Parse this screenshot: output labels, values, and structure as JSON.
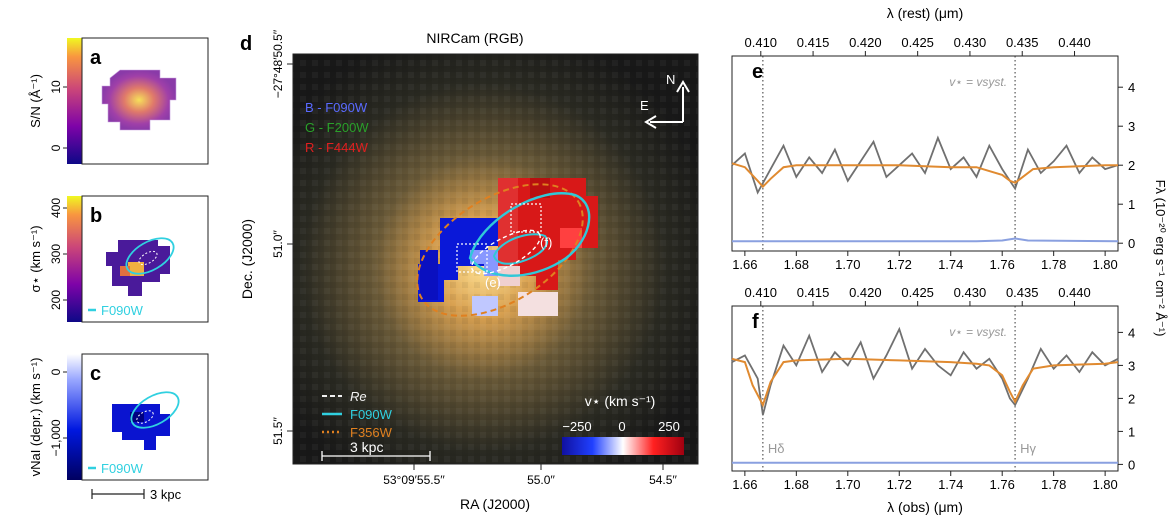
{
  "panels": {
    "a": {
      "letter": "a",
      "ylabel": "S/N (Å⁻¹)",
      "colorbar_ticks": [
        "10",
        "0"
      ]
    },
    "b": {
      "letter": "b",
      "ylabel": "σ⋆ (km s⁻¹)",
      "colorbar_ticks": [
        "400",
        "300",
        "200"
      ],
      "legend": "F090W"
    },
    "c": {
      "letter": "c",
      "ylabel": "vNaI (depr.) (km s⁻¹)",
      "colorbar_ticks": [
        "0",
        "−1,000"
      ],
      "legend": "F090W",
      "scalebar": "3 kpc"
    },
    "d": {
      "letter": "d",
      "title": "NIRCam (RGB)",
      "bands": [
        "B - F090W",
        "G - F200W",
        "R - F444W"
      ],
      "compass": {
        "north": "N",
        "east": "E"
      },
      "yticks": [
        "−27°48′50.5′′",
        "51.0′′",
        "51.5′′"
      ],
      "xticks": [
        "53°09′55.5′′",
        "55.0′′",
        "54.5′′"
      ],
      "xlabel": "RA (J2000)",
      "ylabel": "Dec. (J2000)",
      "legend": [
        {
          "label": "Re",
          "color": "#f0f0f0",
          "style": "dashed"
        },
        {
          "label": "F090W",
          "color": "#30d0e0",
          "style": "solid"
        },
        {
          "label": "F356W",
          "color": "#e08020",
          "style": "dotted"
        }
      ],
      "scalebar": "3 kpc",
      "region_labels": [
        "(f)",
        "(e)"
      ],
      "colorbar": {
        "title": "v⋆ (km s⁻¹)",
        "ticks": [
          "−250",
          "0",
          "250"
        ]
      }
    },
    "spectra": {
      "top_axis_label": "λ (rest) (μm)",
      "bottom_axis_label": "λ (obs) (μm)",
      "right_axis_label": "Fλ (10⁻²⁰ erg s⁻¹ cm⁻² Å⁻¹)",
      "systemic_label": "v⋆ = vsyst.",
      "line_labels": [
        "Hδ",
        "Hγ"
      ]
    }
  },
  "chart_data": [
    {
      "type": "line",
      "panel": "e",
      "x_obs_ticks": [
        1.66,
        1.68,
        1.7,
        1.72,
        1.74,
        1.76,
        1.78,
        1.8
      ],
      "x_rest_ticks": [
        0.41,
        0.415,
        0.42,
        0.425,
        0.43,
        0.435,
        0.44
      ],
      "xlim": [
        1.655,
        1.805
      ],
      "ylim": [
        -0.2,
        4.8
      ],
      "yticks": [
        0,
        1,
        2,
        3,
        4
      ],
      "vlines": [
        1.667,
        1.765
      ],
      "series": [
        {
          "color": "#707070",
          "x": [
            1.655,
            1.66,
            1.665,
            1.67,
            1.675,
            1.68,
            1.685,
            1.69,
            1.695,
            1.7,
            1.705,
            1.71,
            1.715,
            1.72,
            1.725,
            1.73,
            1.735,
            1.74,
            1.745,
            1.75,
            1.755,
            1.76,
            1.765,
            1.77,
            1.775,
            1.78,
            1.785,
            1.79,
            1.795,
            1.8,
            1.805
          ],
          "values": [
            2.0,
            2.3,
            1.3,
            1.9,
            2.5,
            1.7,
            2.2,
            1.8,
            2.4,
            1.6,
            2.1,
            2.6,
            1.7,
            2.0,
            2.3,
            1.8,
            2.7,
            1.9,
            2.2,
            1.7,
            2.5,
            1.9,
            1.4,
            2.4,
            1.8,
            2.1,
            2.5,
            1.8,
            2.2,
            1.9,
            2.0
          ]
        },
        {
          "color": "#e08a30",
          "x": [
            1.655,
            1.66,
            1.665,
            1.667,
            1.67,
            1.675,
            1.68,
            1.7,
            1.72,
            1.74,
            1.75,
            1.755,
            1.76,
            1.763,
            1.765,
            1.768,
            1.772,
            1.78,
            1.8,
            1.805
          ],
          "values": [
            2.05,
            1.95,
            1.6,
            1.45,
            1.65,
            1.95,
            2.0,
            2.0,
            2.0,
            1.95,
            1.95,
            1.85,
            1.75,
            1.6,
            1.55,
            1.7,
            1.9,
            1.95,
            2.0,
            2.0
          ]
        },
        {
          "color": "#8aa0e0",
          "x": [
            1.655,
            1.7,
            1.75,
            1.76,
            1.765,
            1.77,
            1.805
          ],
          "values": [
            0.05,
            0.05,
            0.05,
            0.07,
            0.12,
            0.07,
            0.05
          ]
        }
      ]
    },
    {
      "type": "line",
      "panel": "f",
      "x_obs_ticks": [
        1.66,
        1.68,
        1.7,
        1.72,
        1.74,
        1.76,
        1.78,
        1.8
      ],
      "x_rest_ticks": [
        0.41,
        0.415,
        0.42,
        0.425,
        0.43,
        0.435,
        0.44
      ],
      "xlim": [
        1.655,
        1.805
      ],
      "ylim": [
        -0.2,
        4.8
      ],
      "yticks": [
        0,
        1,
        2,
        3,
        4
      ],
      "vlines": [
        1.667,
        1.765
      ],
      "series": [
        {
          "color": "#707070",
          "x": [
            1.655,
            1.66,
            1.665,
            1.667,
            1.67,
            1.675,
            1.68,
            1.685,
            1.69,
            1.695,
            1.7,
            1.705,
            1.71,
            1.715,
            1.72,
            1.725,
            1.73,
            1.735,
            1.74,
            1.745,
            1.75,
            1.755,
            1.76,
            1.763,
            1.765,
            1.77,
            1.775,
            1.78,
            1.785,
            1.79,
            1.795,
            1.8,
            1.805
          ],
          "values": [
            3.1,
            3.3,
            2.6,
            1.5,
            2.4,
            3.6,
            3.0,
            3.9,
            2.8,
            3.4,
            3.0,
            3.7,
            2.6,
            3.3,
            4.1,
            2.9,
            3.5,
            3.0,
            2.7,
            3.4,
            2.9,
            3.2,
            2.6,
            2.0,
            1.8,
            2.6,
            3.5,
            2.9,
            3.3,
            2.8,
            3.4,
            3.0,
            3.2
          ]
        },
        {
          "color": "#e08a30",
          "x": [
            1.655,
            1.66,
            1.663,
            1.667,
            1.67,
            1.675,
            1.68,
            1.7,
            1.72,
            1.74,
            1.75,
            1.755,
            1.76,
            1.763,
            1.765,
            1.768,
            1.772,
            1.78,
            1.8,
            1.805
          ],
          "values": [
            3.2,
            3.1,
            2.4,
            1.8,
            2.5,
            3.1,
            3.15,
            3.2,
            3.15,
            3.1,
            3.05,
            3.0,
            2.7,
            2.2,
            1.9,
            2.4,
            2.9,
            3.0,
            3.05,
            3.1
          ]
        },
        {
          "color": "#8aa0e0",
          "x": [
            1.655,
            1.805
          ],
          "values": [
            0.05,
            0.05
          ]
        }
      ]
    }
  ]
}
